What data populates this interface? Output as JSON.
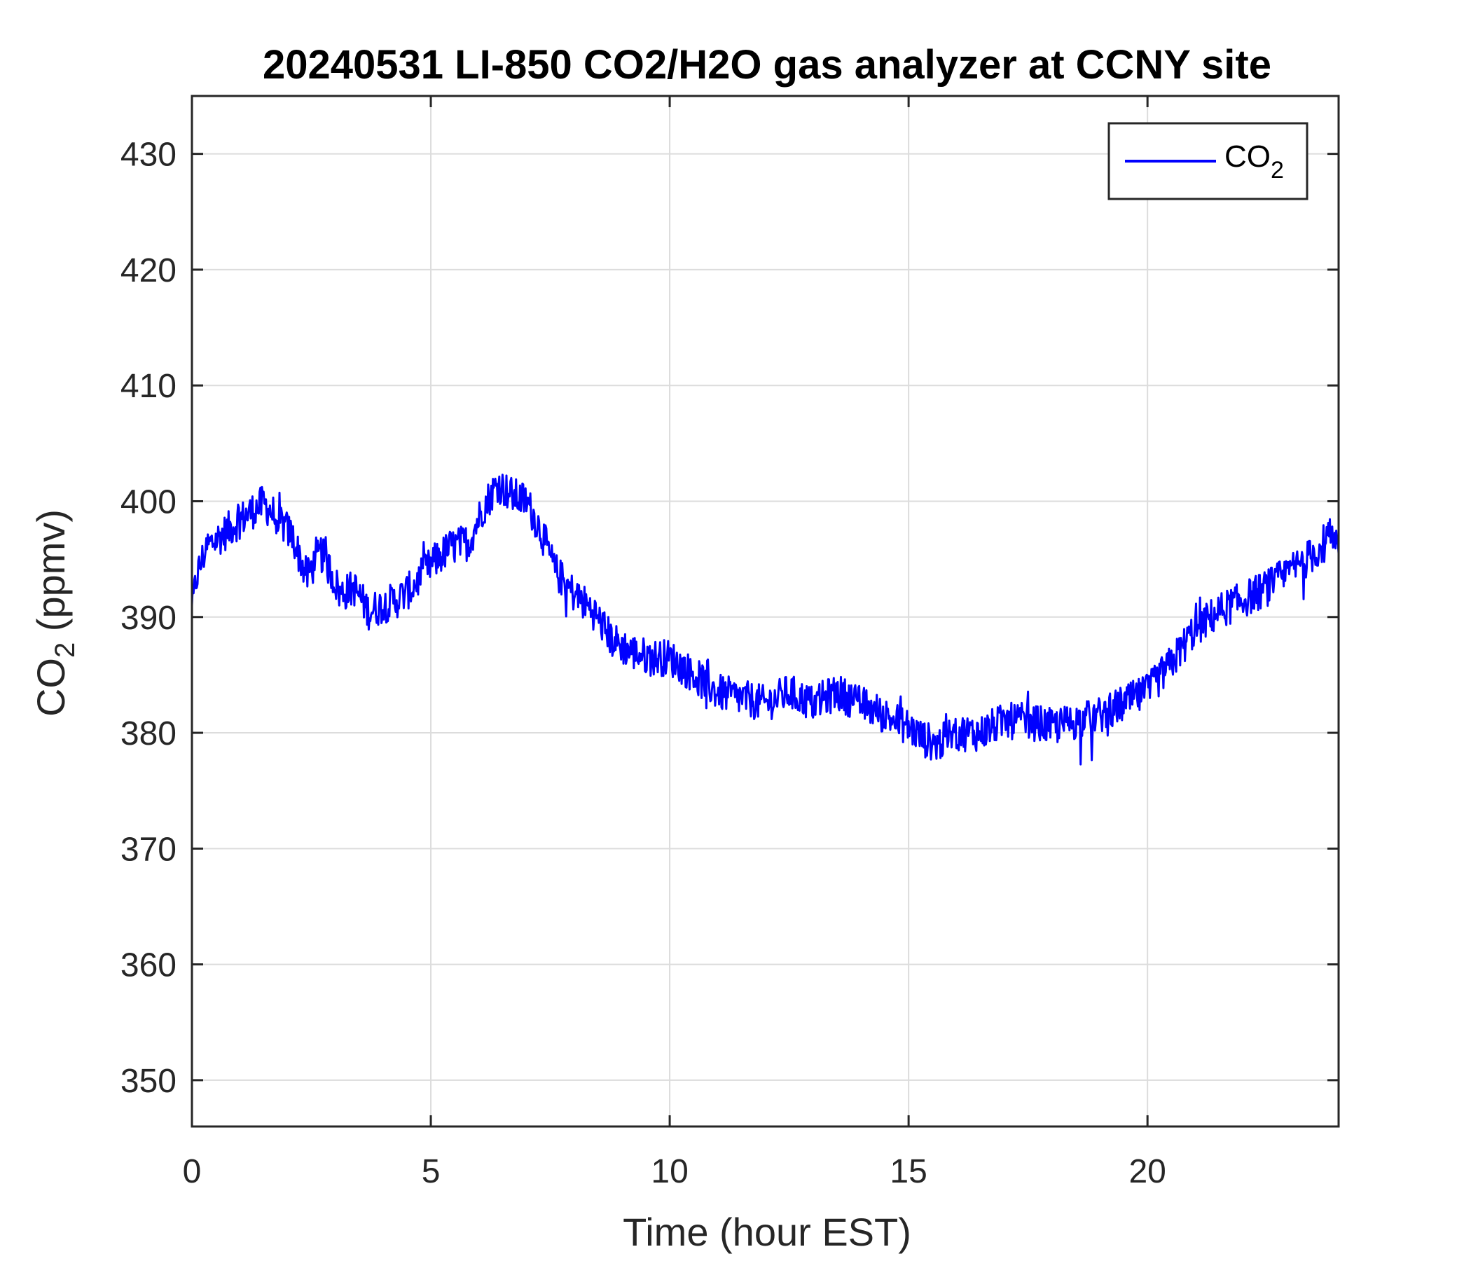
{
  "chart_data": {
    "type": "line",
    "title": "20240531 LI-850 CO2/H2O gas analyzer at CCNY site",
    "xlabel": "Time (hour EST)",
    "ylabel_main": "CO",
    "ylabel_sub": "2",
    "ylabel_tail": " (ppmv)",
    "xlim": [
      0,
      24
    ],
    "ylim": [
      346,
      435
    ],
    "xticks": [
      0,
      5,
      10,
      15,
      20
    ],
    "yticks": [
      350,
      360,
      370,
      380,
      390,
      400,
      410,
      420,
      430
    ],
    "grid": true,
    "legend": {
      "position": "top-right",
      "label_main": "CO",
      "label_sub": "2"
    },
    "series": [
      {
        "color": "#0000ff",
        "x": [
          0,
          0.1,
          0.3,
          0.6,
          0.9,
          1.2,
          1.5,
          1.8,
          2.1,
          2.4,
          2.7,
          2.9,
          3.1,
          3.4,
          3.7,
          4.0,
          4.3,
          4.6,
          5.0,
          5.4,
          5.8,
          6.1,
          6.4,
          6.7,
          7.0,
          7.3,
          7.6,
          8.0,
          8.4,
          8.8,
          9.2,
          9.6,
          10.0,
          10.5,
          11.0,
          11.5,
          12.0,
          12.5,
          13.0,
          13.5,
          14.0,
          14.5,
          15.0,
          15.3,
          15.6,
          16.0,
          16.5,
          17.0,
          17.5,
          18.0,
          18.5,
          19.0,
          19.5,
          20.0,
          20.5,
          21.0,
          21.5,
          22.0,
          22.5,
          23.0,
          23.5,
          23.8,
          24.0
        ],
        "y": [
          390.5,
          393.5,
          396.0,
          397.0,
          398.0,
          399.0,
          399.8,
          398.5,
          397.0,
          393.5,
          395.5,
          394.0,
          392.0,
          392.5,
          390.5,
          391.0,
          391.5,
          392.5,
          394.5,
          396.0,
          396.5,
          399.5,
          401.5,
          400.5,
          400.0,
          397.5,
          394.0,
          392.0,
          390.5,
          388.0,
          387.0,
          386.5,
          386.5,
          385.0,
          383.5,
          383.0,
          382.5,
          383.5,
          382.5,
          383.5,
          382.5,
          381.5,
          380.5,
          379.5,
          379.0,
          380.0,
          380.0,
          381.0,
          381.0,
          380.5,
          381.0,
          381.5,
          382.5,
          383.5,
          386.0,
          389.0,
          390.5,
          391.5,
          392.5,
          394.0,
          395.5,
          397.0,
          395.5
        ]
      }
    ]
  }
}
